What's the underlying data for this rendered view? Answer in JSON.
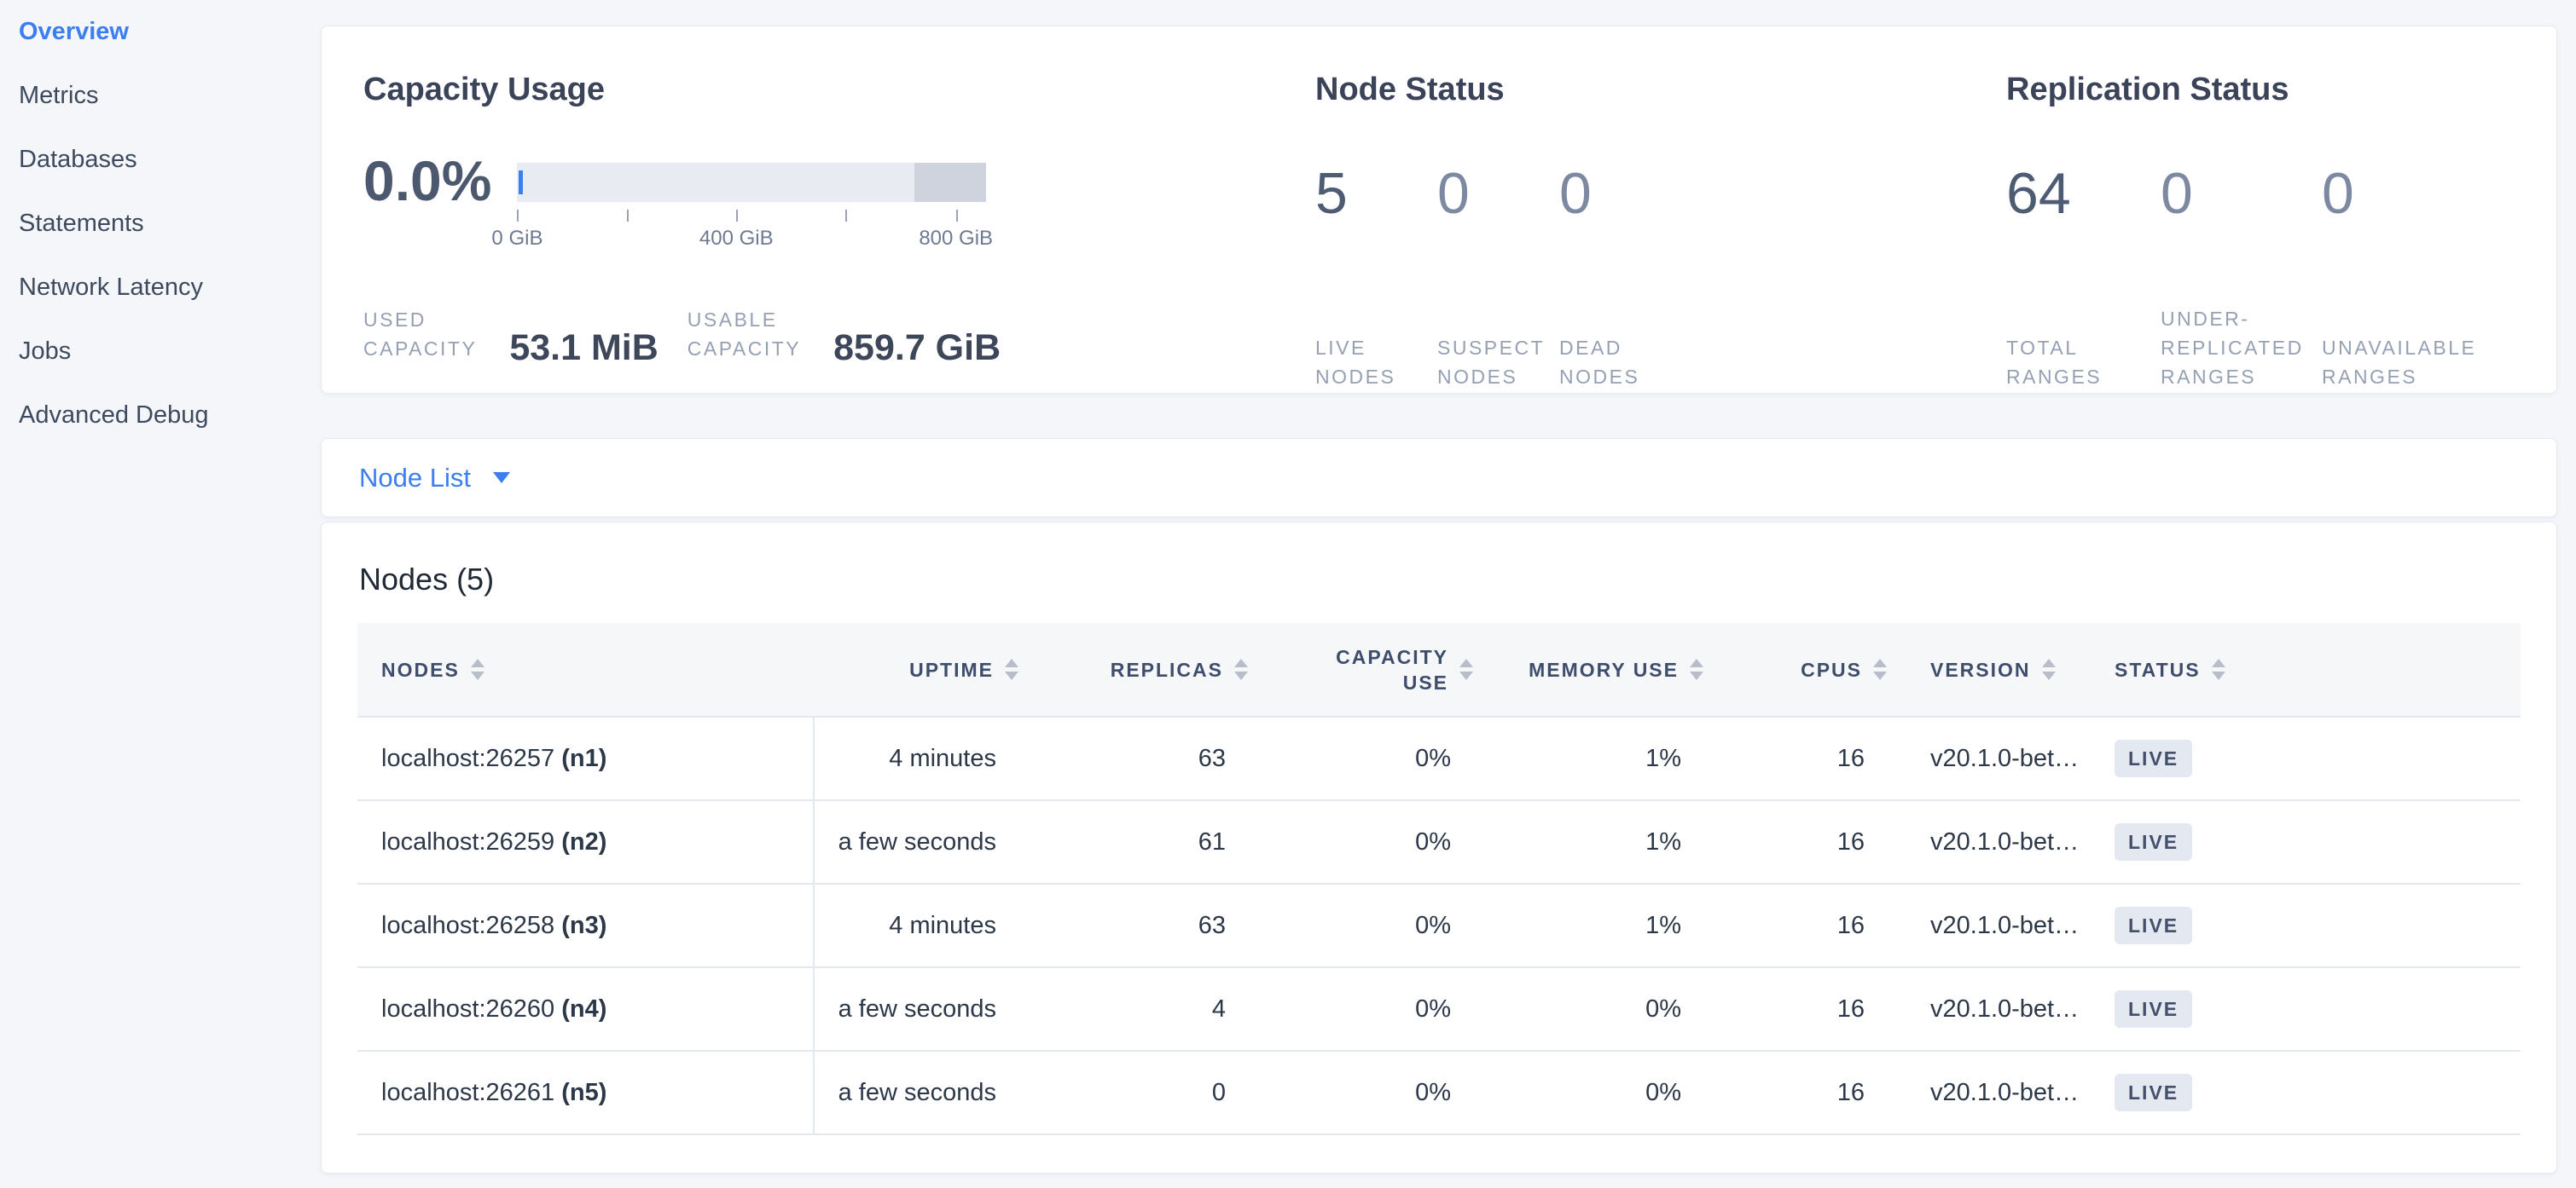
{
  "colors": {
    "accent_blue": "#3b7ef0",
    "page_bg": "#f4f6fa",
    "card_bg": "#ffffff",
    "bar_light": "#e8ebf1",
    "bar_dark": "#ced3dd",
    "badge_bg": "#e4e8f0",
    "badge_text": "#44506b",
    "number_primary": "#4d5b73",
    "number_secondary": "#7d89a0",
    "stat_label": "#96a0b3"
  },
  "sidebar": {
    "items": [
      {
        "label": "Overview",
        "active": true
      },
      {
        "label": "Metrics",
        "active": false
      },
      {
        "label": "Databases",
        "active": false
      },
      {
        "label": "Statements",
        "active": false
      },
      {
        "label": "Network Latency",
        "active": false
      },
      {
        "label": "Jobs",
        "active": false
      },
      {
        "label": "Advanced Debug",
        "active": false
      }
    ]
  },
  "capacity": {
    "title": "Capacity Usage",
    "percent": "0.0%",
    "bar": {
      "dark_segment_pct": 15.3,
      "used_marker_pct": 0
    },
    "axis_ticks": [
      {
        "pct": 0,
        "label": "0 GiB"
      },
      {
        "pct": 23.4,
        "label": ""
      },
      {
        "pct": 46.7,
        "label": "400 GiB"
      },
      {
        "pct": 70,
        "label": ""
      },
      {
        "pct": 93.5,
        "label": "800 GiB"
      }
    ],
    "stats": [
      {
        "label_lines": [
          "USED",
          "CAPACITY"
        ],
        "value": "53.1 MiB"
      },
      {
        "label_lines": [
          "USABLE",
          "CAPACITY"
        ],
        "value": "859.7 GiB"
      }
    ]
  },
  "node_status": {
    "title": "Node Status",
    "stats": [
      {
        "value": "5",
        "label_lines": [
          "LIVE",
          "NODES"
        ],
        "primary": true
      },
      {
        "value": "0",
        "label_lines": [
          "SUSPECT",
          "NODES"
        ],
        "primary": false
      },
      {
        "value": "0",
        "label_lines": [
          "DEAD",
          "NODES"
        ],
        "primary": false
      }
    ]
  },
  "replication": {
    "title": "Replication Status",
    "stats": [
      {
        "value": "64",
        "label_lines": [
          "TOTAL",
          "RANGES"
        ],
        "primary": true
      },
      {
        "value": "0",
        "label_lines": [
          "UNDER-",
          "REPLICATED",
          "RANGES"
        ],
        "primary": false
      },
      {
        "value": "0",
        "label_lines": [
          "UNAVAILABLE",
          "RANGES"
        ],
        "primary": false
      }
    ]
  },
  "node_list_dropdown": {
    "label": "Node List"
  },
  "nodes_table": {
    "title": "Nodes (5)",
    "columns": [
      {
        "label": "NODES",
        "key": "node",
        "align": "left"
      },
      {
        "label": "UPTIME",
        "key": "uptime",
        "align": "right"
      },
      {
        "label": "REPLICAS",
        "key": "replicas",
        "align": "right"
      },
      {
        "label": "CAPACITY USE",
        "key": "capacity_use",
        "align": "right"
      },
      {
        "label": "MEMORY USE",
        "key": "memory_use",
        "align": "right"
      },
      {
        "label": "CPUS",
        "key": "cpus",
        "align": "right"
      },
      {
        "label": "VERSION",
        "key": "version",
        "align": "left"
      },
      {
        "label": "STATUS",
        "key": "status",
        "align": "left"
      }
    ],
    "rows": [
      {
        "node": "localhost:26257",
        "node_id": "(n1)",
        "uptime": "4 minutes",
        "replicas": "63",
        "capacity_use": "0%",
        "memory_use": "1%",
        "cpus": "16",
        "version": "v20.1.0-bet…",
        "status": "LIVE"
      },
      {
        "node": "localhost:26259",
        "node_id": "(n2)",
        "uptime": "a few seconds",
        "replicas": "61",
        "capacity_use": "0%",
        "memory_use": "1%",
        "cpus": "16",
        "version": "v20.1.0-bet…",
        "status": "LIVE"
      },
      {
        "node": "localhost:26258",
        "node_id": "(n3)",
        "uptime": "4 minutes",
        "replicas": "63",
        "capacity_use": "0%",
        "memory_use": "1%",
        "cpus": "16",
        "version": "v20.1.0-bet…",
        "status": "LIVE"
      },
      {
        "node": "localhost:26260",
        "node_id": "(n4)",
        "uptime": "a few seconds",
        "replicas": "4",
        "capacity_use": "0%",
        "memory_use": "0%",
        "cpus": "16",
        "version": "v20.1.0-bet…",
        "status": "LIVE"
      },
      {
        "node": "localhost:26261",
        "node_id": "(n5)",
        "uptime": "a few seconds",
        "replicas": "0",
        "capacity_use": "0%",
        "memory_use": "0%",
        "cpus": "16",
        "version": "v20.1.0-bet…",
        "status": "LIVE"
      }
    ]
  }
}
